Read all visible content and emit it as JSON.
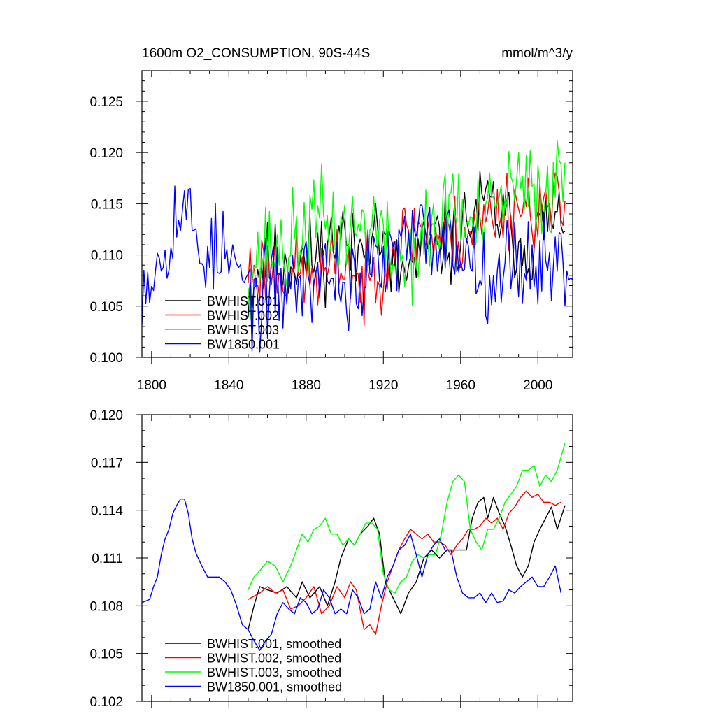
{
  "chart_data": [
    {
      "type": "line",
      "title": "1600m O2_CONSUMPTION, 90S-44S",
      "units": "mmol/m^3/y",
      "xlabel": "",
      "ylabel": "",
      "xlim": [
        1795,
        2018
      ],
      "ylim": [
        0.1,
        0.128
      ],
      "xticks": [
        1800,
        1840,
        1880,
        1920,
        1960,
        2000
      ],
      "xtick_labels": [
        "1800",
        "1840",
        "1880",
        "1920",
        "1960",
        "2000"
      ],
      "yticks": [
        0.1,
        0.105,
        0.11,
        0.115,
        0.12,
        0.125
      ],
      "ytick_labels": [
        "0.100",
        "0.105",
        "0.110",
        "0.115",
        "0.120",
        "0.125"
      ],
      "legend": {
        "position": "lower-left",
        "entries": [
          "BWHIST.001",
          "BWHIST.002",
          "BWHIST.003",
          "BW1850.001"
        ]
      },
      "series": [
        {
          "name": "BWHIST.001",
          "color": "#000000",
          "x_start": 1850,
          "x_end": 2014,
          "anchors_x": [
            1850,
            1855,
            1860,
            1870,
            1880,
            1890,
            1898,
            1905,
            1915,
            1925,
            1935,
            1945,
            1955,
            1965,
            1975,
            1985,
            1995,
            2005,
            2010,
            2014
          ],
          "anchors_y": [
            0.1065,
            0.1085,
            0.109,
            0.1095,
            0.1095,
            0.1105,
            0.1125,
            0.1095,
            0.1135,
            0.108,
            0.1085,
            0.1115,
            0.111,
            0.1135,
            0.115,
            0.1125,
            0.1105,
            0.1135,
            0.1125,
            0.1145
          ],
          "noise": 0.0036,
          "seed": 11
        },
        {
          "name": "BWHIST.002",
          "color": "#ff0000",
          "x_start": 1850,
          "x_end": 2014,
          "anchors_x": [
            1850,
            1855,
            1860,
            1870,
            1880,
            1890,
            1900,
            1910,
            1920,
            1930,
            1940,
            1950,
            1960,
            1970,
            1980,
            1990,
            2000,
            2010,
            2014
          ],
          "anchors_y": [
            0.1085,
            0.1085,
            0.109,
            0.1085,
            0.108,
            0.108,
            0.1095,
            0.1065,
            0.1095,
            0.1115,
            0.1125,
            0.1115,
            0.112,
            0.113,
            0.1145,
            0.115,
            0.1145,
            0.1145,
            0.1145
          ],
          "noise": 0.0034,
          "seed": 23
        },
        {
          "name": "BWHIST.003",
          "color": "#00ff00",
          "x_start": 1850,
          "x_end": 2014,
          "anchors_x": [
            1850,
            1860,
            1870,
            1880,
            1888,
            1895,
            1905,
            1915,
            1922,
            1930,
            1940,
            1950,
            1955,
            1965,
            1975,
            1985,
            1995,
            2005,
            2014
          ],
          "anchors_y": [
            0.109,
            0.1105,
            0.1105,
            0.1125,
            0.1135,
            0.1125,
            0.1125,
            0.113,
            0.11,
            0.1095,
            0.111,
            0.1125,
            0.1165,
            0.112,
            0.1135,
            0.1165,
            0.116,
            0.1165,
            0.118
          ],
          "noise": 0.0042,
          "seed": 37
        },
        {
          "name": "BW1850.001",
          "color": "#0000ff",
          "x_start": 1795,
          "x_end": 2018,
          "anchors_x": [
            1795,
            1800,
            1805,
            1810,
            1815,
            1820,
            1825,
            1830,
            1840,
            1850,
            1855,
            1860,
            1870,
            1880,
            1890,
            1900,
            1910,
            1920,
            1930,
            1940,
            1950,
            1960,
            1970,
            1980,
            1990,
            2000,
            2010,
            2018
          ],
          "anchors_y": [
            0.108,
            0.1085,
            0.11,
            0.113,
            0.1145,
            0.1135,
            0.1105,
            0.1105,
            0.1095,
            0.1065,
            0.1055,
            0.106,
            0.107,
            0.1075,
            0.1085,
            0.107,
            0.1075,
            0.109,
            0.1105,
            0.112,
            0.1115,
            0.1105,
            0.109,
            0.1085,
            0.1095,
            0.1095,
            0.1095,
            0.1085
          ],
          "noise": 0.004,
          "seed": 53
        }
      ]
    },
    {
      "type": "line",
      "title": "",
      "xlabel": "",
      "ylabel": "",
      "xlim": [
        1795,
        2018
      ],
      "ylim": [
        0.102,
        0.12
      ],
      "xticks": [
        1800,
        1840,
        1880,
        1920,
        1960,
        2000
      ],
      "xtick_labels": [
        "",
        "",
        "",
        "",
        "",
        ""
      ],
      "yticks": [
        0.102,
        0.105,
        0.108,
        0.111,
        0.114,
        0.117,
        0.12
      ],
      "ytick_labels": [
        "0.102",
        "0.105",
        "0.108",
        "0.111",
        "0.114",
        "0.117",
        "0.120"
      ],
      "legend": {
        "position": "lower-left",
        "entries": [
          "BWHIST.001, smoothed",
          "BWHIST.002, smoothed",
          "BWHIST.003, smoothed",
          "BW1850.001, smoothed"
        ]
      },
      "series": [
        {
          "name": "BWHIST.001, smoothed",
          "color": "#000000",
          "x": [
            1850,
            1853,
            1856,
            1860,
            1865,
            1870,
            1875,
            1878,
            1882,
            1887,
            1891,
            1895,
            1898,
            1902,
            1905,
            1908,
            1912,
            1915,
            1918,
            1921,
            1925,
            1929,
            1933,
            1937,
            1941,
            1945,
            1949,
            1953,
            1956,
            1960,
            1963,
            1966,
            1969,
            1972,
            1974,
            1977,
            1980,
            1983,
            1986,
            1989,
            1992,
            1995,
            1998,
            2001,
            2004,
            2007,
            2010,
            2014
          ],
          "y": [
            0.1065,
            0.108,
            0.1092,
            0.109,
            0.1088,
            0.1092,
            0.1085,
            0.1095,
            0.1085,
            0.1092,
            0.108,
            0.1095,
            0.111,
            0.1122,
            0.1118,
            0.1125,
            0.113,
            0.1135,
            0.1125,
            0.1095,
            0.1085,
            0.1075,
            0.1088,
            0.1095,
            0.111,
            0.1115,
            0.111,
            0.1115,
            0.1115,
            0.1115,
            0.1115,
            0.1135,
            0.1145,
            0.1148,
            0.1135,
            0.1148,
            0.1138,
            0.113,
            0.1118,
            0.1105,
            0.1098,
            0.1105,
            0.112,
            0.1128,
            0.1135,
            0.1142,
            0.1128,
            0.1143
          ]
        },
        {
          "name": "BWHIST.002, smoothed",
          "color": "#ff0000",
          "x": [
            1850,
            1853,
            1856,
            1860,
            1864,
            1868,
            1872,
            1876,
            1880,
            1884,
            1888,
            1892,
            1896,
            1900,
            1903,
            1906,
            1910,
            1913,
            1916,
            1919,
            1922,
            1925,
            1928,
            1931,
            1934,
            1937,
            1940,
            1943,
            1946,
            1949,
            1952,
            1955,
            1958,
            1961,
            1964,
            1967,
            1970,
            1973,
            1976,
            1979,
            1982,
            1985,
            1988,
            1991,
            1994,
            1997,
            2000,
            2003,
            2006,
            2009,
            2012
          ],
          "y": [
            0.1084,
            0.1086,
            0.1088,
            0.1092,
            0.1088,
            0.109,
            0.1078,
            0.108,
            0.1085,
            0.1092,
            0.1075,
            0.108,
            0.1092,
            0.1085,
            0.1095,
            0.109,
            0.1065,
            0.1068,
            0.1062,
            0.108,
            0.1095,
            0.1105,
            0.1115,
            0.1122,
            0.1128,
            0.1125,
            0.1122,
            0.1125,
            0.112,
            0.112,
            0.1118,
            0.1112,
            0.1118,
            0.1122,
            0.1128,
            0.1128,
            0.113,
            0.1135,
            0.1132,
            0.1135,
            0.1128,
            0.1138,
            0.1142,
            0.1148,
            0.1152,
            0.1148,
            0.115,
            0.1145,
            0.1145,
            0.1143,
            0.1145
          ]
        },
        {
          "name": "BWHIST.003, smoothed",
          "color": "#00ff00",
          "x": [
            1850,
            1853,
            1856,
            1860,
            1864,
            1868,
            1872,
            1875,
            1878,
            1881,
            1884,
            1887,
            1890,
            1893,
            1896,
            1899,
            1902,
            1905,
            1908,
            1911,
            1914,
            1917,
            1920,
            1923,
            1926,
            1929,
            1932,
            1935,
            1938,
            1941,
            1944,
            1947,
            1950,
            1953,
            1956,
            1959,
            1962,
            1965,
            1968,
            1971,
            1974,
            1977,
            1980,
            1983,
            1986,
            1989,
            1992,
            1995,
            1998,
            2001,
            2004,
            2007,
            2010,
            2014
          ],
          "y": [
            0.109,
            0.1098,
            0.1102,
            0.1108,
            0.1105,
            0.1095,
            0.1105,
            0.1115,
            0.1125,
            0.112,
            0.1128,
            0.113,
            0.1135,
            0.1125,
            0.1125,
            0.1118,
            0.1122,
            0.1118,
            0.1125,
            0.1132,
            0.1132,
            0.1128,
            0.11,
            0.109,
            0.1088,
            0.1095,
            0.1098,
            0.1108,
            0.1112,
            0.111,
            0.1112,
            0.1112,
            0.1125,
            0.1145,
            0.1158,
            0.1162,
            0.1158,
            0.1128,
            0.112,
            0.1115,
            0.1128,
            0.1128,
            0.1135,
            0.1145,
            0.115,
            0.1155,
            0.1165,
            0.1165,
            0.1168,
            0.1155,
            0.1162,
            0.1158,
            0.1165,
            0.1182
          ]
        },
        {
          "name": "BW1850.001, smoothed",
          "color": "#0000ff",
          "x": [
            1795,
            1797,
            1799,
            1801,
            1803,
            1805,
            1807,
            1809,
            1811,
            1813,
            1815,
            1817,
            1819,
            1821,
            1823,
            1826,
            1829,
            1832,
            1835,
            1838,
            1841,
            1844,
            1847,
            1850,
            1853,
            1856,
            1859,
            1862,
            1865,
            1868,
            1871,
            1874,
            1877,
            1880,
            1883,
            1886,
            1889,
            1892,
            1895,
            1898,
            1901,
            1904,
            1907,
            1910,
            1913,
            1916,
            1919,
            1922,
            1925,
            1928,
            1931,
            1934,
            1937,
            1940,
            1943,
            1946,
            1949,
            1952,
            1955,
            1958,
            1961,
            1964,
            1967,
            1970,
            1973,
            1976,
            1979,
            1982,
            1985,
            1988,
            1991,
            1994,
            1997,
            2000,
            2003,
            2006,
            2009,
            2012
          ],
          "y": [
            0.1082,
            0.1083,
            0.1084,
            0.1092,
            0.1098,
            0.1112,
            0.1122,
            0.1128,
            0.1138,
            0.1143,
            0.1147,
            0.1147,
            0.1138,
            0.1122,
            0.1113,
            0.1105,
            0.1098,
            0.1098,
            0.1098,
            0.1095,
            0.109,
            0.108,
            0.1068,
            0.1065,
            0.1058,
            0.1052,
            0.1058,
            0.1062,
            0.1075,
            0.1082,
            0.1078,
            0.1075,
            0.1085,
            0.1082,
            0.1075,
            0.1078,
            0.109,
            0.1085,
            0.1075,
            0.1078,
            0.1075,
            0.109,
            0.1085,
            0.1075,
            0.1078,
            0.1095,
            0.1085,
            0.1098,
            0.1105,
            0.1115,
            0.1118,
            0.1125,
            0.1112,
            0.1098,
            0.1112,
            0.1118,
            0.1122,
            0.1115,
            0.1115,
            0.1098,
            0.1088,
            0.1085,
            0.1085,
            0.1088,
            0.1082,
            0.1088,
            0.1082,
            0.1083,
            0.109,
            0.1088,
            0.1092,
            0.1095,
            0.1098,
            0.1092,
            0.1092,
            0.1098,
            0.1105,
            0.1088
          ]
        }
      ]
    }
  ]
}
